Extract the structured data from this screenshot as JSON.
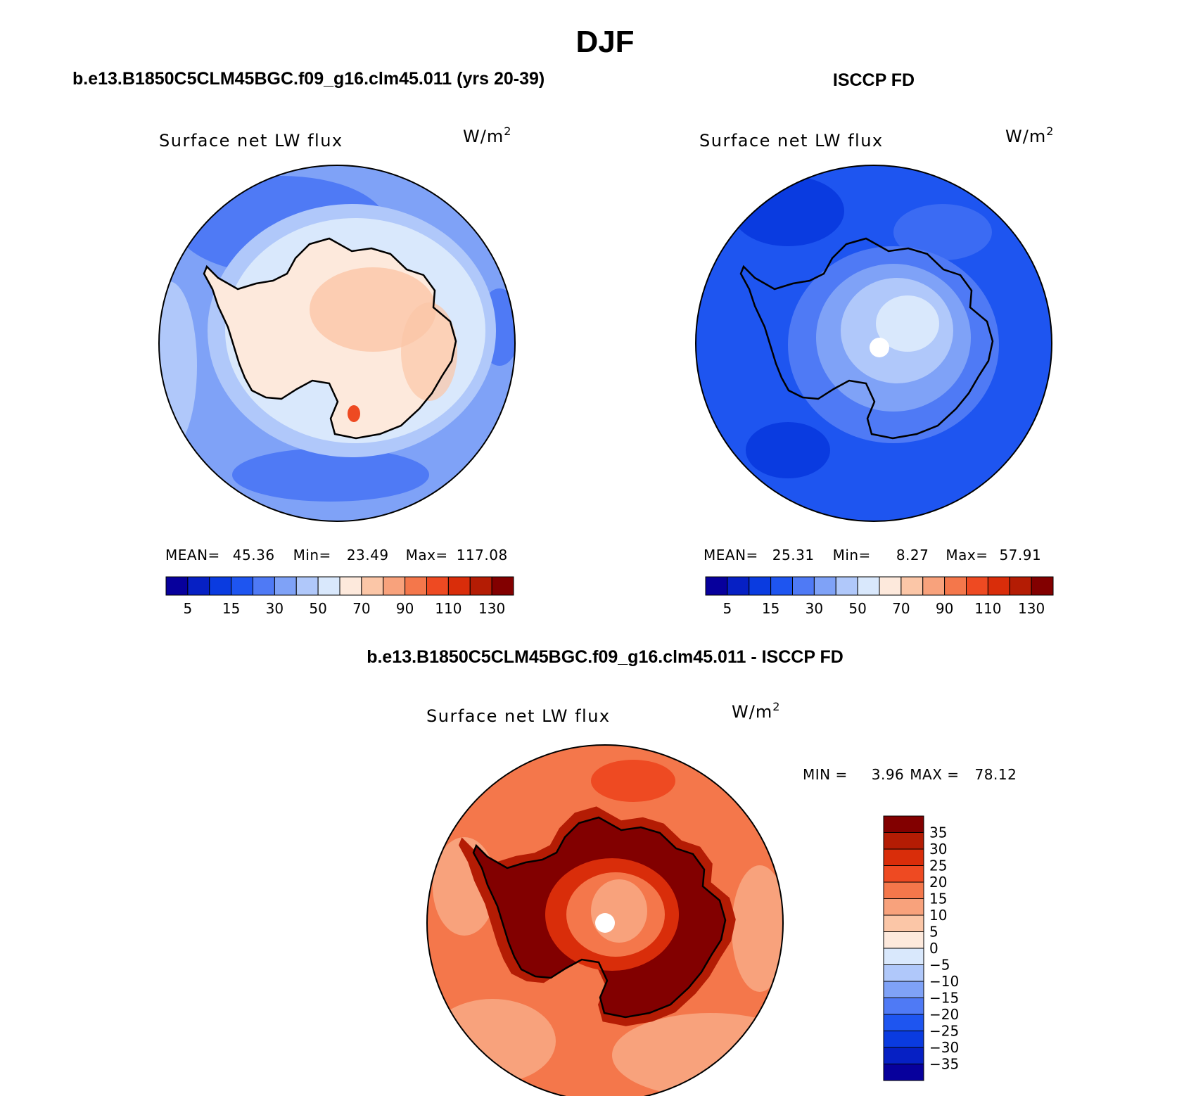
{
  "figure": {
    "season": "DJF",
    "panels": [
      {
        "id": "model",
        "header": "b.e13.B1850C5CLM45BGC.f09_g16.clm45.011 (yrs 20-39)",
        "variable": "Surface net LW flux",
        "units": "W/m",
        "units_exp": "2",
        "stats": {
          "mean_label": "MEAN=",
          "mean": "45.36",
          "min_label": "Min=",
          "min": "23.49",
          "max_label": "Max=",
          "max": "117.08"
        },
        "colorbar_ticks": [
          "5",
          "15",
          "30",
          "50",
          "70",
          "90",
          "110",
          "130"
        ]
      },
      {
        "id": "obs",
        "header": "ISCCP FD",
        "variable": "Surface net LW flux",
        "units": "W/m",
        "units_exp": "2",
        "stats": {
          "mean_label": "MEAN=",
          "mean": "25.31",
          "min_label": "Min=",
          "min": "8.27",
          "max_label": "Max=",
          "max": "57.91"
        },
        "colorbar_ticks": [
          "5",
          "15",
          "30",
          "50",
          "70",
          "90",
          "110",
          "130"
        ]
      },
      {
        "id": "diff",
        "header": "b.e13.B1850C5CLM45BGC.f09_g16.clm45.011 - ISCCP FD",
        "variable": "Surface net LW flux",
        "units": "W/m",
        "units_exp": "2",
        "stats": {
          "min_label": "MIN =",
          "min": "3.96",
          "max_label": "MAX =",
          "max": "78.12"
        },
        "colorbar_ticks": [
          "35",
          "30",
          "25",
          "20",
          "15",
          "10",
          "5",
          "0",
          "−5",
          "−10",
          "−15",
          "−20",
          "−25",
          "−30",
          "−35"
        ]
      }
    ],
    "palette": {
      "abs_levels": [
        "#07009c",
        "#0620c4",
        "#0a3be0",
        "#1e55f0",
        "#4f7af5",
        "#7fa2f7",
        "#b0c8fa",
        "#d9e8fc",
        "#fde9dc",
        "#fbc6a7",
        "#f8a27c",
        "#f4774b",
        "#ee4a22",
        "#d92d0a",
        "#b41c04",
        "#820000"
      ],
      "diff_levels": [
        "#820000",
        "#b41c04",
        "#d92d0a",
        "#ee4a22",
        "#f4774b",
        "#f8a27c",
        "#fbc6a7",
        "#fde9dc",
        "#d9e8fc",
        "#b0c8fa",
        "#7fa2f7",
        "#4f7af5",
        "#1e55f0",
        "#0a3be0",
        "#0620c4",
        "#07009c"
      ]
    }
  }
}
